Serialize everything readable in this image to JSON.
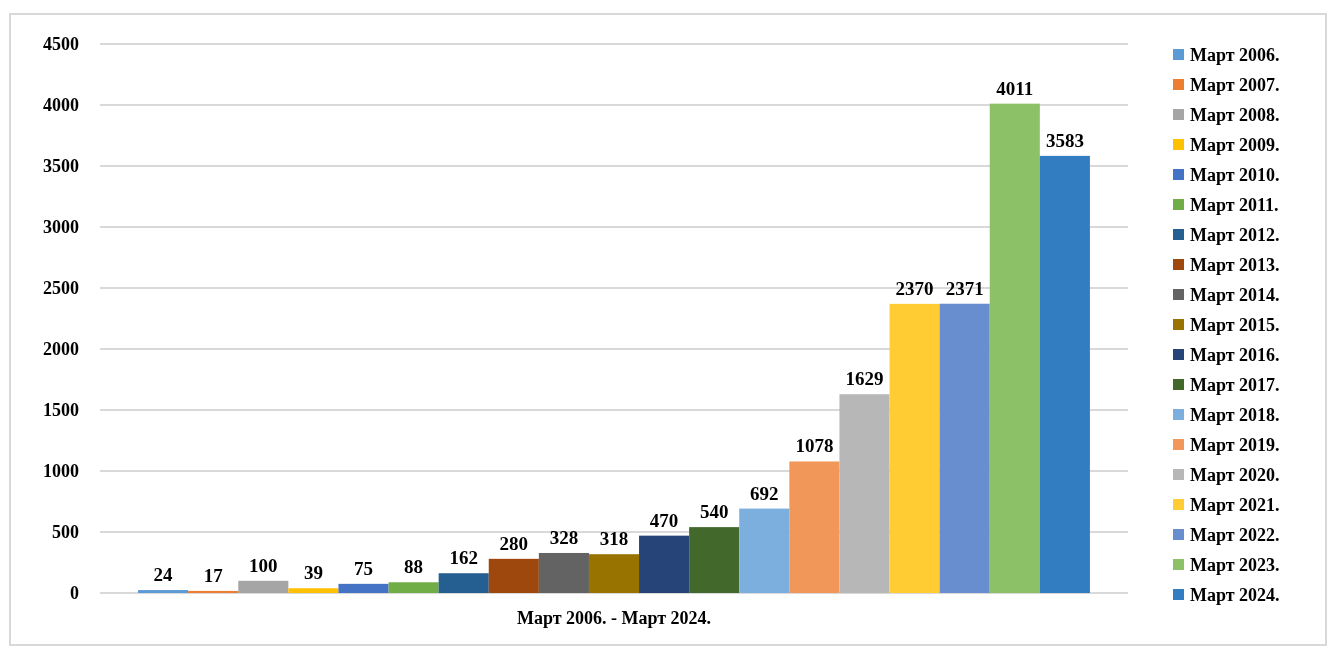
{
  "chart_data": {
    "type": "bar",
    "categories": [
      "Март 2006. - Март 2024."
    ],
    "series": [
      {
        "name": "Март 2006.",
        "color": "#5b9bd5",
        "values": [
          24
        ]
      },
      {
        "name": "Март 2007.",
        "color": "#ed7d31",
        "values": [
          17
        ]
      },
      {
        "name": "Март 2008.",
        "color": "#a5a5a5",
        "values": [
          100
        ]
      },
      {
        "name": "Март 2009.",
        "color": "#ffc000",
        "values": [
          39
        ]
      },
      {
        "name": "Март 2010.",
        "color": "#4472c4",
        "values": [
          75
        ]
      },
      {
        "name": "Март 2011.",
        "color": "#70ad47",
        "values": [
          88
        ]
      },
      {
        "name": "Март 2012.",
        "color": "#255e91",
        "values": [
          162
        ]
      },
      {
        "name": "Март 2013.",
        "color": "#9e480e",
        "values": [
          280
        ]
      },
      {
        "name": "Март 2014.",
        "color": "#636363",
        "values": [
          328
        ]
      },
      {
        "name": "Март 2015.",
        "color": "#997300",
        "values": [
          318
        ]
      },
      {
        "name": "Март 2016.",
        "color": "#264478",
        "values": [
          470
        ]
      },
      {
        "name": "Март 2017.",
        "color": "#43682b",
        "values": [
          540
        ]
      },
      {
        "name": "Март 2018.",
        "color": "#7cafdd",
        "values": [
          692
        ]
      },
      {
        "name": "Март 2019.",
        "color": "#f1975a",
        "values": [
          1078
        ]
      },
      {
        "name": "Март 2020.",
        "color": "#b7b7b7",
        "values": [
          1629
        ]
      },
      {
        "name": "Март 2021.",
        "color": "#ffcd33",
        "values": [
          2370
        ]
      },
      {
        "name": "Март 2022.",
        "color": "#698ed0",
        "values": [
          2371
        ]
      },
      {
        "name": "Март 2023.",
        "color": "#8cc168",
        "values": [
          4011
        ]
      },
      {
        "name": "Март 2024.",
        "color": "#327dc2",
        "values": [
          3583
        ]
      }
    ],
    "ylim": [
      0,
      4500
    ],
    "yticks": [
      0,
      500,
      1000,
      1500,
      2000,
      2500,
      3000,
      3500,
      4000,
      4500
    ],
    "grid": "y",
    "legend": "right",
    "data_labels": true
  }
}
